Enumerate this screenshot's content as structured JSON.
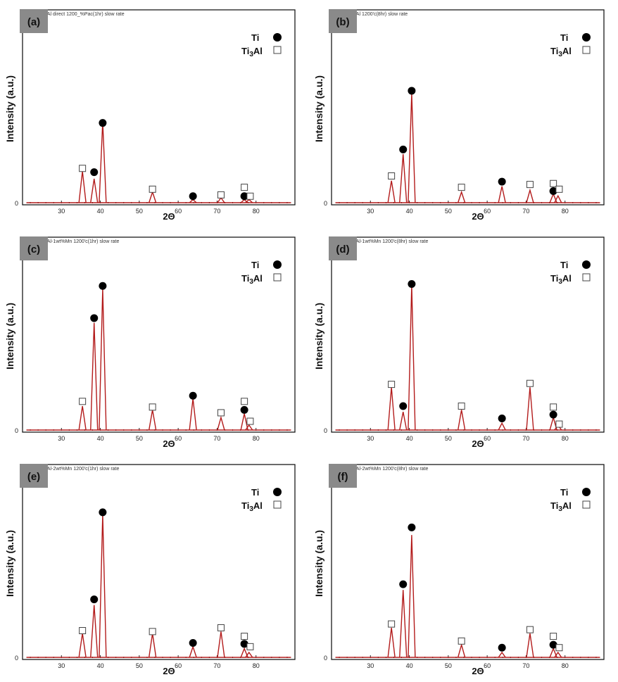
{
  "legend": {
    "ti_label": "Ti",
    "ti3al_label": "Ti",
    "ti3al_sub": "3",
    "ti3al_suffix": "Al",
    "ti_marker": "filled-circle",
    "ti3al_marker": "open-square"
  },
  "colors": {
    "trace": "#b31b1b",
    "frame": "#1a1a1a",
    "badge": "#8a8a8a"
  },
  "chart_data": [
    {
      "type": "line",
      "badge": "(a)",
      "header": "LAl direct 1200_%Pac(1hr) slow rate",
      "xlabel": "2Θ",
      "ylabel": "Intensity (a.u.)",
      "xlim": [
        20,
        90
      ],
      "ylim": [
        0,
        100
      ],
      "x_ticks": [
        30,
        40,
        50,
        60,
        70,
        80
      ],
      "zero_label": "0",
      "peaks": [
        {
          "x": 35.4,
          "y": 17,
          "phase": "Ti3Al"
        },
        {
          "x": 38.4,
          "y": 13,
          "phase": "Ti"
        },
        {
          "x": 40.6,
          "y": 43,
          "phase": "Ti"
        },
        {
          "x": 53.4,
          "y": 6,
          "phase": "Ti3Al"
        },
        {
          "x": 63.8,
          "y": 2,
          "phase": "Ti"
        },
        {
          "x": 71.0,
          "y": 3,
          "phase": "Ti3Al"
        },
        {
          "x": 77.0,
          "y": 2,
          "phase": "Ti"
        },
        {
          "x": 78.2,
          "y": 2,
          "phase": "Ti3Al"
        }
      ],
      "markers": [
        {
          "x": 35.4,
          "y": 18.5,
          "phase": "Ti3Al"
        },
        {
          "x": 38.4,
          "y": 16.5,
          "phase": "Ti"
        },
        {
          "x": 40.6,
          "y": 42.5,
          "phase": "Ti"
        },
        {
          "x": 53.4,
          "y": 7.5,
          "phase": "Ti3Al"
        },
        {
          "x": 63.8,
          "y": 3.8,
          "phase": "Ti"
        },
        {
          "x": 71.0,
          "y": 4.5,
          "phase": "Ti3Al"
        },
        {
          "x": 77.0,
          "y": 8.5,
          "phase": "Ti3Al"
        },
        {
          "x": 77.0,
          "y": 3.8,
          "phase": "Ti"
        },
        {
          "x": 78.5,
          "y": 3.8,
          "phase": "Ti3Al"
        }
      ]
    },
    {
      "type": "line",
      "badge": "(b)",
      "header": "LAl 1200'c(8hr) slow rate",
      "xlabel": "2Θ",
      "ylabel": "Intensity (a.u.)",
      "xlim": [
        20,
        90
      ],
      "ylim": [
        0,
        100
      ],
      "x_ticks": [
        30,
        40,
        50,
        60,
        70,
        80
      ],
      "zero_label": "0",
      "peaks": [
        {
          "x": 35.4,
          "y": 12,
          "phase": "Ti3Al"
        },
        {
          "x": 38.4,
          "y": 26,
          "phase": "Ti"
        },
        {
          "x": 40.6,
          "y": 58,
          "phase": "Ti"
        },
        {
          "x": 53.4,
          "y": 6,
          "phase": "Ti3Al"
        },
        {
          "x": 63.8,
          "y": 9,
          "phase": "Ti"
        },
        {
          "x": 71.0,
          "y": 7,
          "phase": "Ti3Al"
        },
        {
          "x": 77.0,
          "y": 5,
          "phase": "Ti"
        },
        {
          "x": 78.2,
          "y": 4,
          "phase": "Ti3Al"
        }
      ],
      "markers": [
        {
          "x": 35.4,
          "y": 14.5,
          "phase": "Ti3Al"
        },
        {
          "x": 38.4,
          "y": 28.5,
          "phase": "Ti"
        },
        {
          "x": 40.6,
          "y": 59.5,
          "phase": "Ti"
        },
        {
          "x": 53.4,
          "y": 8.5,
          "phase": "Ti3Al"
        },
        {
          "x": 63.8,
          "y": 11.5,
          "phase": "Ti"
        },
        {
          "x": 71.0,
          "y": 10,
          "phase": "Ti3Al"
        },
        {
          "x": 77.0,
          "y": 10.5,
          "phase": "Ti3Al"
        },
        {
          "x": 77.0,
          "y": 6.5,
          "phase": "Ti"
        },
        {
          "x": 78.5,
          "y": 7.5,
          "phase": "Ti3Al"
        }
      ]
    },
    {
      "type": "line",
      "badge": "(c)",
      "header": "LAl-1wt%Mn 1200'c(1hr) slow rate",
      "xlabel": "2Θ",
      "ylabel": "Intensity (a.u.)",
      "xlim": [
        20,
        90
      ],
      "ylim": [
        0,
        100
      ],
      "x_ticks": [
        30,
        40,
        50,
        60,
        70,
        80
      ],
      "zero_label": "0",
      "peaks": [
        {
          "x": 35.4,
          "y": 13,
          "phase": "Ti3Al"
        },
        {
          "x": 38.4,
          "y": 57,
          "phase": "Ti"
        },
        {
          "x": 40.6,
          "y": 75,
          "phase": "Ti"
        },
        {
          "x": 53.4,
          "y": 11,
          "phase": "Ti3Al"
        },
        {
          "x": 63.8,
          "y": 17,
          "phase": "Ti"
        },
        {
          "x": 71.0,
          "y": 7,
          "phase": "Ti3Al"
        },
        {
          "x": 77.0,
          "y": 9,
          "phase": "Ti"
        },
        {
          "x": 78.2,
          "y": 3,
          "phase": "Ti3Al"
        }
      ],
      "markers": [
        {
          "x": 35.4,
          "y": 15.5,
          "phase": "Ti3Al"
        },
        {
          "x": 38.4,
          "y": 59.5,
          "phase": "Ti"
        },
        {
          "x": 40.6,
          "y": 76.5,
          "phase": "Ti"
        },
        {
          "x": 53.4,
          "y": 12.5,
          "phase": "Ti3Al"
        },
        {
          "x": 63.8,
          "y": 18.5,
          "phase": "Ti"
        },
        {
          "x": 71.0,
          "y": 9.5,
          "phase": "Ti3Al"
        },
        {
          "x": 77.0,
          "y": 15.5,
          "phase": "Ti3Al"
        },
        {
          "x": 77.0,
          "y": 11,
          "phase": "Ti"
        },
        {
          "x": 78.5,
          "y": 5,
          "phase": "Ti3Al"
        }
      ]
    },
    {
      "type": "line",
      "badge": "(d)",
      "header": "LAl-1wt%Mn 1200'c(8hr) slow rate",
      "xlabel": "2Θ",
      "ylabel": "Intensity (a.u.)",
      "xlim": [
        20,
        90
      ],
      "ylim": [
        0,
        100
      ],
      "x_ticks": [
        30,
        40,
        50,
        60,
        70,
        80
      ],
      "zero_label": "0",
      "peaks": [
        {
          "x": 35.4,
          "y": 23,
          "phase": "Ti3Al"
        },
        {
          "x": 38.4,
          "y": 10,
          "phase": "Ti"
        },
        {
          "x": 40.6,
          "y": 77,
          "phase": "Ti"
        },
        {
          "x": 53.4,
          "y": 11,
          "phase": "Ti3Al"
        },
        {
          "x": 63.8,
          "y": 4,
          "phase": "Ti"
        },
        {
          "x": 71.0,
          "y": 23,
          "phase": "Ti3Al"
        },
        {
          "x": 77.0,
          "y": 7,
          "phase": "Ti"
        },
        {
          "x": 78.2,
          "y": 3,
          "phase": "Ti3Al"
        }
      ],
      "markers": [
        {
          "x": 35.4,
          "y": 24.5,
          "phase": "Ti3Al"
        },
        {
          "x": 38.4,
          "y": 13,
          "phase": "Ti"
        },
        {
          "x": 40.6,
          "y": 77.5,
          "phase": "Ti"
        },
        {
          "x": 53.4,
          "y": 13,
          "phase": "Ti3Al"
        },
        {
          "x": 63.8,
          "y": 6.5,
          "phase": "Ti"
        },
        {
          "x": 71.0,
          "y": 25,
          "phase": "Ti3Al"
        },
        {
          "x": 77.0,
          "y": 12.5,
          "phase": "Ti3Al"
        },
        {
          "x": 77.0,
          "y": 8.5,
          "phase": "Ti"
        },
        {
          "x": 78.5,
          "y": 3.5,
          "phase": "Ti3Al"
        }
      ]
    },
    {
      "type": "line",
      "badge": "(e)",
      "header": "LAl-2wt%Mn 1200'c(1hr) slow rate",
      "xlabel": "2Θ",
      "ylabel": "Intensity (a.u.)",
      "xlim": [
        20,
        90
      ],
      "ylim": [
        0,
        100
      ],
      "x_ticks": [
        30,
        40,
        50,
        60,
        70,
        80
      ],
      "zero_label": "0",
      "peaks": [
        {
          "x": 35.4,
          "y": 13,
          "phase": "Ti3Al"
        },
        {
          "x": 38.4,
          "y": 28,
          "phase": "Ti"
        },
        {
          "x": 40.6,
          "y": 76,
          "phase": "Ti"
        },
        {
          "x": 53.4,
          "y": 13,
          "phase": "Ti3Al"
        },
        {
          "x": 63.8,
          "y": 6,
          "phase": "Ti"
        },
        {
          "x": 71.0,
          "y": 14,
          "phase": "Ti3Al"
        },
        {
          "x": 77.0,
          "y": 5,
          "phase": "Ti"
        },
        {
          "x": 78.2,
          "y": 3,
          "phase": "Ti3Al"
        }
      ],
      "markers": [
        {
          "x": 35.4,
          "y": 14.5,
          "phase": "Ti3Al"
        },
        {
          "x": 38.4,
          "y": 31,
          "phase": "Ti"
        },
        {
          "x": 40.6,
          "y": 77,
          "phase": "Ti"
        },
        {
          "x": 53.4,
          "y": 14,
          "phase": "Ti3Al"
        },
        {
          "x": 63.8,
          "y": 8,
          "phase": "Ti"
        },
        {
          "x": 71.0,
          "y": 16,
          "phase": "Ti3Al"
        },
        {
          "x": 77.0,
          "y": 11.5,
          "phase": "Ti3Al"
        },
        {
          "x": 77.0,
          "y": 7.5,
          "phase": "Ti"
        },
        {
          "x": 78.5,
          "y": 6,
          "phase": "Ti3Al"
        }
      ]
    },
    {
      "type": "line",
      "badge": "(f)",
      "header": "LAl-2wt%Mn 1200'c(8hr) slow rate",
      "xlabel": "2Θ",
      "ylabel": "Intensity (a.u.)",
      "xlim": [
        20,
        90
      ],
      "ylim": [
        0,
        100
      ],
      "x_ticks": [
        30,
        40,
        50,
        60,
        70,
        80
      ],
      "zero_label": "0",
      "peaks": [
        {
          "x": 35.4,
          "y": 16,
          "phase": "Ti3Al"
        },
        {
          "x": 38.4,
          "y": 36,
          "phase": "Ti"
        },
        {
          "x": 40.6,
          "y": 65,
          "phase": "Ti"
        },
        {
          "x": 53.4,
          "y": 7,
          "phase": "Ti3Al"
        },
        {
          "x": 63.8,
          "y": 3,
          "phase": "Ti"
        },
        {
          "x": 71.0,
          "y": 13,
          "phase": "Ti3Al"
        },
        {
          "x": 77.0,
          "y": 5,
          "phase": "Ti"
        },
        {
          "x": 78.2,
          "y": 3,
          "phase": "Ti3Al"
        }
      ],
      "markers": [
        {
          "x": 35.4,
          "y": 18,
          "phase": "Ti3Al"
        },
        {
          "x": 38.4,
          "y": 39,
          "phase": "Ti"
        },
        {
          "x": 40.6,
          "y": 69,
          "phase": "Ti"
        },
        {
          "x": 53.4,
          "y": 9,
          "phase": "Ti3Al"
        },
        {
          "x": 63.8,
          "y": 5.5,
          "phase": "Ti"
        },
        {
          "x": 71.0,
          "y": 15,
          "phase": "Ti3Al"
        },
        {
          "x": 77.0,
          "y": 11.5,
          "phase": "Ti3Al"
        },
        {
          "x": 77.0,
          "y": 7,
          "phase": "Ti"
        },
        {
          "x": 78.5,
          "y": 5.5,
          "phase": "Ti3Al"
        }
      ]
    }
  ]
}
